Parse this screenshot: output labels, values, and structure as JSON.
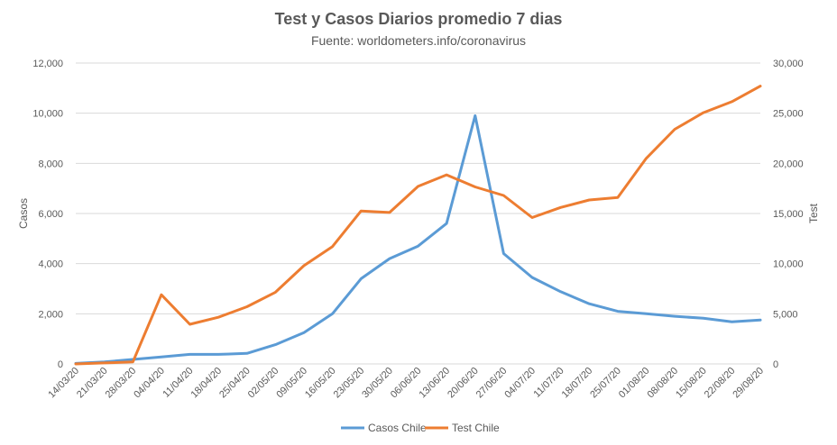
{
  "chart_data": {
    "type": "line",
    "title": "Test y Casos Diarios promedio 7 dias",
    "subtitle": "Fuente: worldometers.info/coronavirus",
    "categories": [
      "14/03/20",
      "21/03/20",
      "28/03/20",
      "04/04/20",
      "11/04/20",
      "18/04/20",
      "25/04/20",
      "02/05/20",
      "09/05/20",
      "16/05/20",
      "23/05/20",
      "30/05/20",
      "06/06/20",
      "13/06/20",
      "20/06/20",
      "27/06/20",
      "04/07/20",
      "11/07/20",
      "18/07/20",
      "25/07/20",
      "01/08/20",
      "08/08/20",
      "15/08/20",
      "22/08/20",
      "29/08/20"
    ],
    "ylabel": "Casos",
    "y2label": "Test",
    "ylim": [
      0,
      12000
    ],
    "y2lim": [
      0,
      30000
    ],
    "yticks": [
      0,
      2000,
      4000,
      6000,
      8000,
      10000,
      12000
    ],
    "y2ticks": [
      0,
      5000,
      10000,
      15000,
      20000,
      25000,
      30000
    ],
    "yticklabels": [
      "0",
      "2,000",
      "4,000",
      "6,000",
      "8,000",
      "10,000",
      "12,000"
    ],
    "y2ticklabels": [
      "0",
      "5,000",
      "10,000",
      "15,000",
      "20,000",
      "25,000",
      "30,000"
    ],
    "grid": true,
    "legend_position": "bottom",
    "series": [
      {
        "name": "Casos Chile",
        "axis": "left",
        "color": "#5B9BD5",
        "values": [
          20,
          80,
          180,
          280,
          380,
          380,
          420,
          770,
          1250,
          2000,
          3400,
          4200,
          4700,
          5600,
          9900,
          4400,
          3450,
          2880,
          2400,
          2100,
          2000,
          1900,
          1820,
          1680,
          1750
        ]
      },
      {
        "name": "Test Chile",
        "axis": "right",
        "color": "#ED7D31",
        "values": [
          0,
          100,
          200,
          6900,
          3950,
          4650,
          5700,
          7150,
          9800,
          11700,
          15250,
          15100,
          17700,
          18850,
          17650,
          16800,
          14600,
          15600,
          16350,
          16600,
          20500,
          23400,
          25050,
          26150,
          27700
        ]
      }
    ]
  }
}
